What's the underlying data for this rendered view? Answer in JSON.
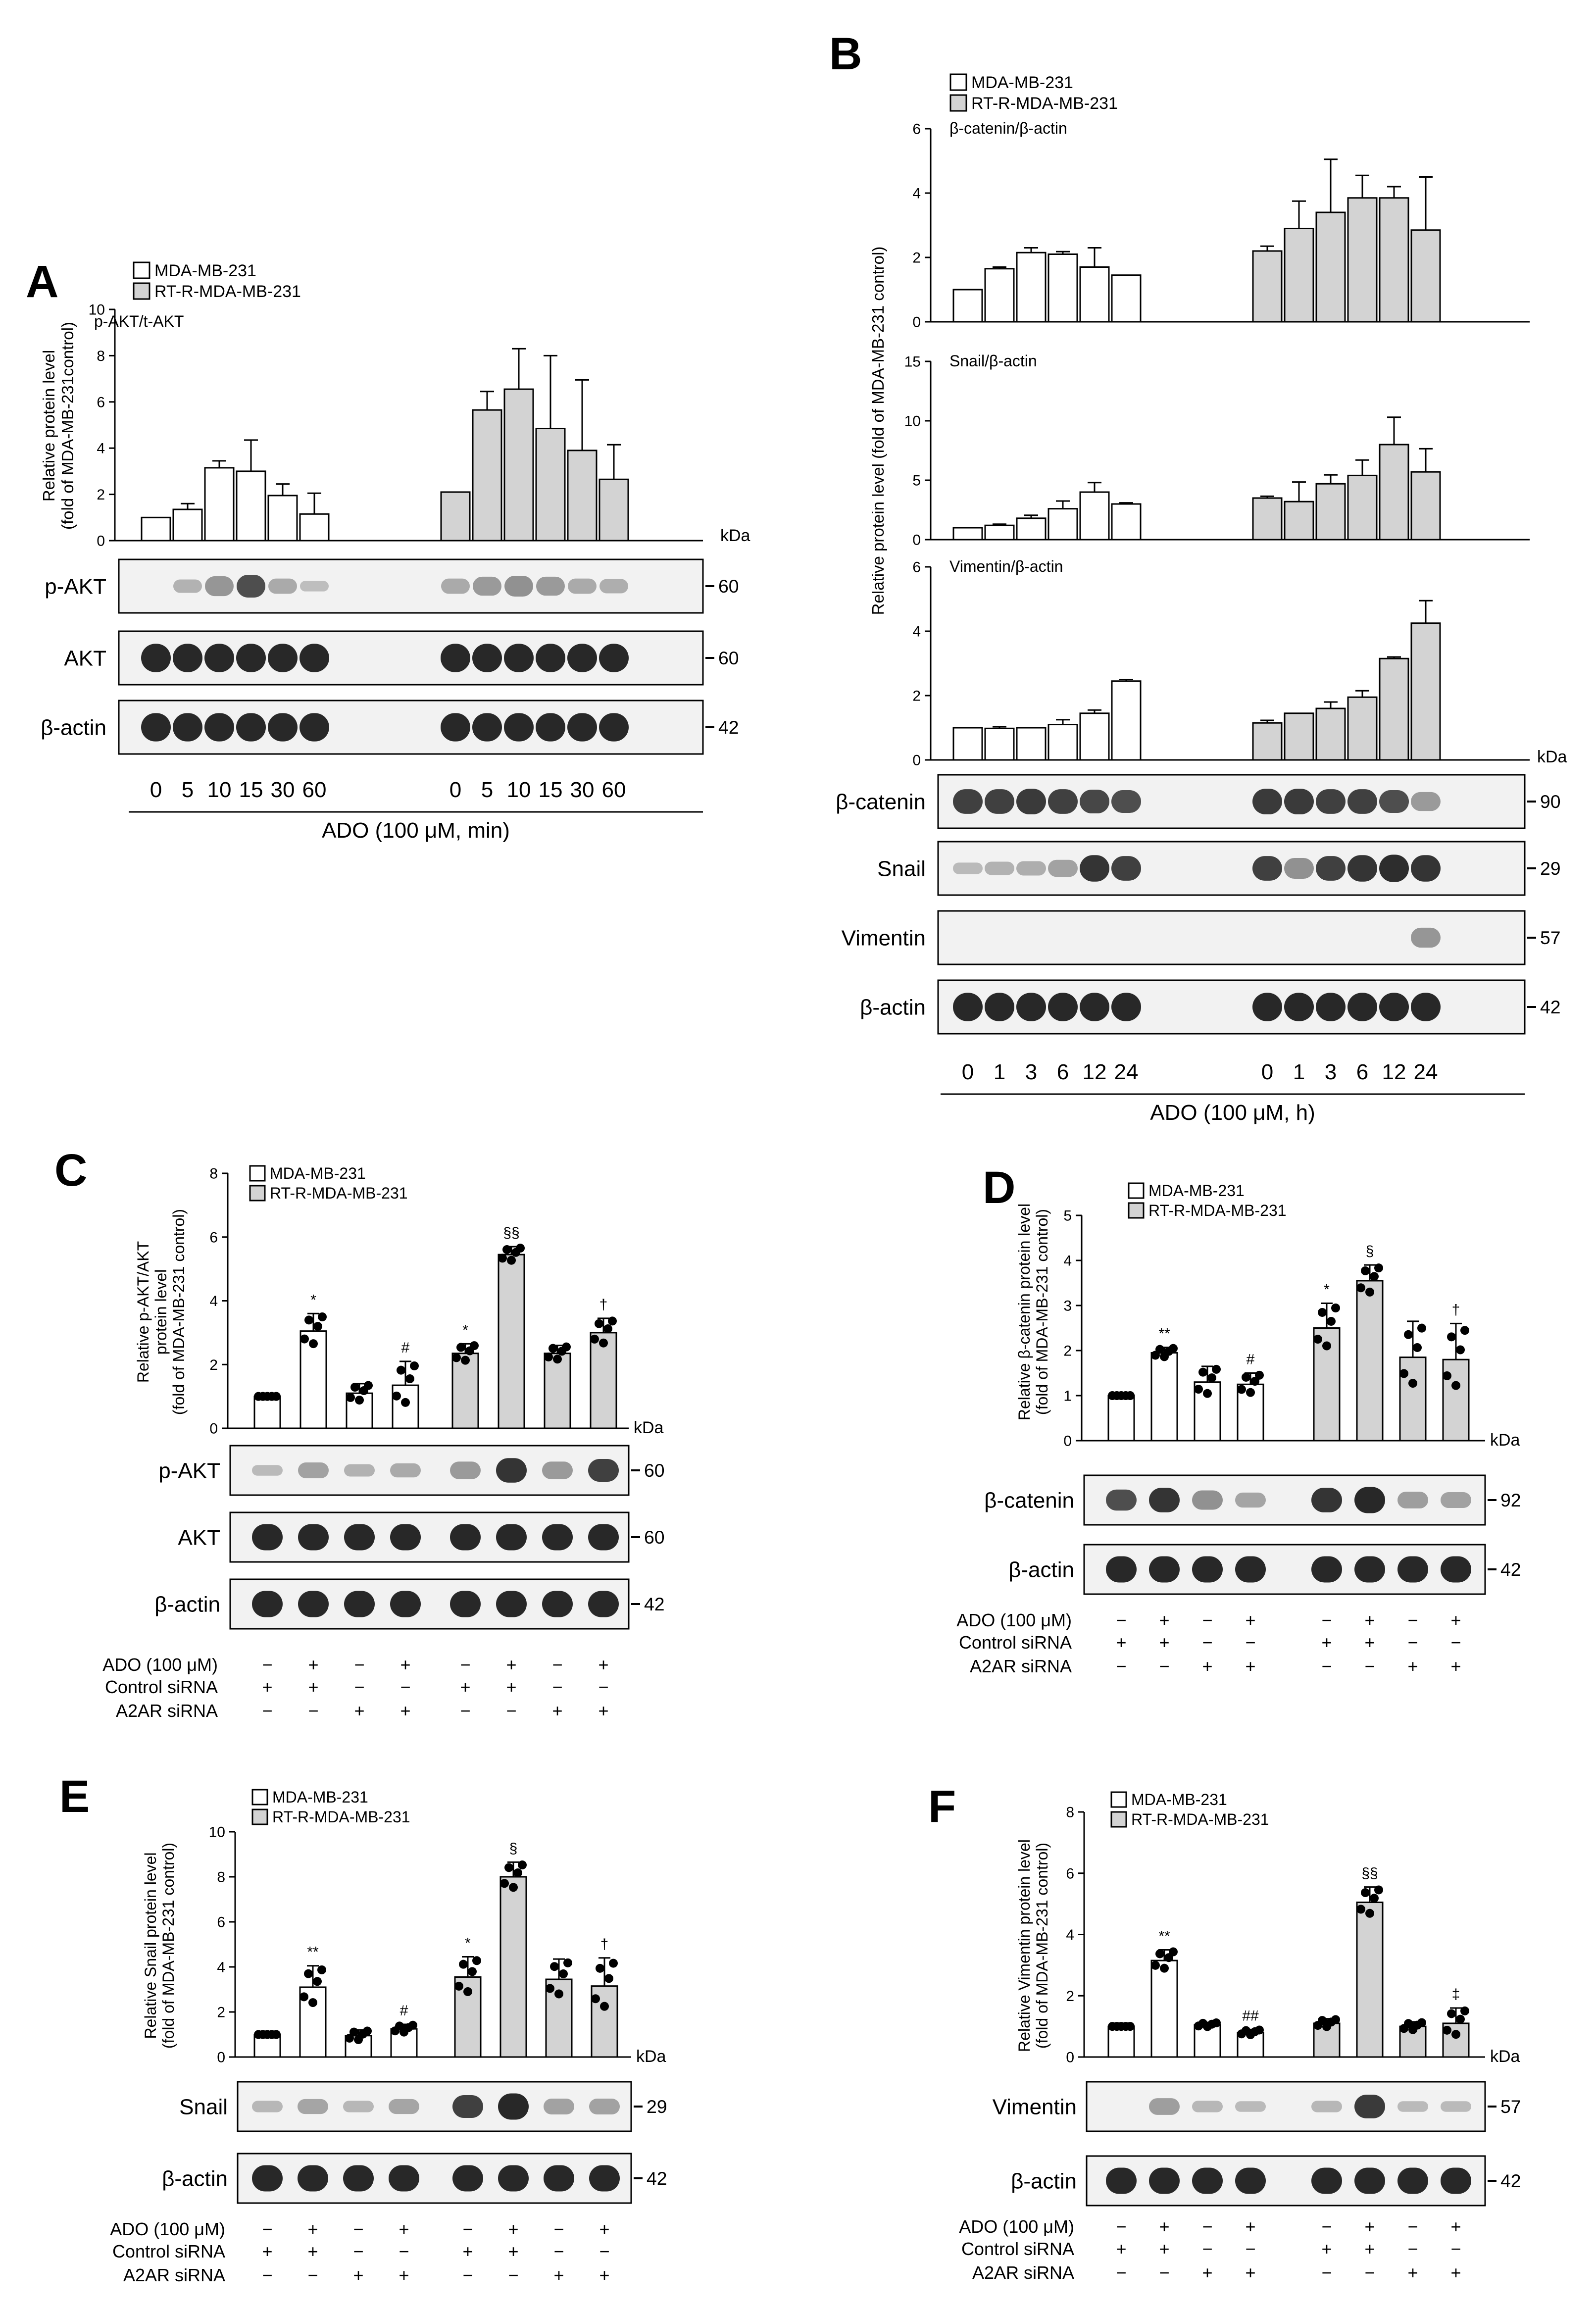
{
  "colors": {
    "ink": "#000000",
    "white_bar": "#ffffff",
    "grey_bar": "#d3d3d3",
    "blot_bg": "#f2f2f2",
    "band": "#1c1c1c",
    "band_light": "#6a6a6a"
  },
  "legend": {
    "white": "MDA-MB-231",
    "grey": "RT-R-MDA-MB-231"
  },
  "kda": "kDa",
  "treatments": {
    "ado": "ADO (100 μM)",
    "control": "Control siRNA",
    "a2ar": "A2AR siRNA",
    "ado_signs": [
      "−",
      "+",
      "−",
      "+",
      "−",
      "+",
      "−",
      "+"
    ],
    "control_signs": [
      "+",
      "+",
      "−",
      "−",
      "+",
      "+",
      "−",
      "−"
    ],
    "a2ar_signs": [
      "−",
      "−",
      "+",
      "+",
      "−",
      "−",
      "+",
      "+"
    ]
  },
  "panelA": {
    "letter": "A",
    "ylabel_1": "Relative protein level",
    "ylabel_2": "(fold of MDA-MB-231control)",
    "subtitle": "p-AKT/t-AKT",
    "time_labels": [
      "0",
      "5",
      "10",
      "15",
      "30",
      "60",
      "0",
      "5",
      "10",
      "15",
      "30",
      "60"
    ],
    "xlabel": "ADO (100 μM, min)",
    "blots": [
      {
        "label": "p-AKT",
        "kda": "60"
      },
      {
        "label": "AKT",
        "kda": "60"
      },
      {
        "label": "β-actin",
        "kda": "42"
      }
    ]
  },
  "panelB": {
    "letter": "B",
    "ylabel": "Relative protein level (fold of MDA-MB-231 control)",
    "subtitles": [
      "β-catenin/β-actin",
      "Snail/β-actin",
      "Vimentin/β-actin"
    ],
    "time_labels": [
      "0",
      "1",
      "3",
      "6",
      "12",
      "24",
      "0",
      "1",
      "3",
      "6",
      "12",
      "24"
    ],
    "xlabel": "ADO (100 μM, h)",
    "blots": [
      {
        "label": "β-catenin",
        "kda": "90"
      },
      {
        "label": "Snail",
        "kda": "29"
      },
      {
        "label": "Vimentin",
        "kda": "57"
      },
      {
        "label": "β-actin",
        "kda": "42"
      }
    ]
  },
  "panelC": {
    "letter": "C",
    "ylabel_1": "Relative p-AKT/AKT",
    "ylabel_2": "protein level",
    "ylabel_3": "(fold of MDA-MB-231 control)",
    "blots": [
      {
        "label": "p-AKT",
        "kda": "60"
      },
      {
        "label": "AKT",
        "kda": "60"
      },
      {
        "label": "β-actin",
        "kda": "42"
      }
    ]
  },
  "panelD": {
    "letter": "D",
    "ylabel_1": "Relative β-catenin protein level",
    "ylabel_2": "(fold of MDA-MB-231 control)",
    "blots": [
      {
        "label": "β-catenin",
        "kda": "92"
      },
      {
        "label": "β-actin",
        "kda": "42"
      }
    ]
  },
  "panelE": {
    "letter": "E",
    "ylabel_1": "Relative Snail protein level",
    "ylabel_2": "(fold of MDA-MB-231 control)",
    "blots": [
      {
        "label": "Snail",
        "kda": "29"
      },
      {
        "label": "β-actin",
        "kda": "42"
      }
    ]
  },
  "panelF": {
    "letter": "F",
    "ylabel_1": "Relative Vimentin protein level",
    "ylabel_2": "(fold of MDA-MB-231 control)",
    "blots": [
      {
        "label": "Vimentin",
        "kda": "57"
      },
      {
        "label": "β-actin",
        "kda": "42"
      }
    ]
  },
  "chart_data": [
    {
      "id": "A",
      "type": "bar",
      "title": "p-AKT/t-AKT",
      "ylabel": "Relative protein level (fold of MDA-MB-231control)",
      "xlabel": "ADO (100 μM, min)",
      "ylim": [
        0,
        10
      ],
      "yticks": [
        0,
        2,
        4,
        6,
        8,
        10
      ],
      "series": [
        {
          "name": "MDA-MB-231",
          "categories": [
            "0",
            "5",
            "10",
            "15",
            "30",
            "60"
          ],
          "values": [
            1.0,
            1.35,
            3.15,
            3.0,
            1.95,
            1.15
          ],
          "errors": [
            0,
            0.25,
            0.3,
            1.35,
            0.5,
            0.9
          ]
        },
        {
          "name": "RT-R-MDA-MB-231",
          "categories": [
            "0",
            "5",
            "10",
            "15",
            "30",
            "60"
          ],
          "values": [
            2.1,
            5.65,
            6.55,
            4.85,
            3.9,
            2.65
          ],
          "errors": [
            0,
            0.8,
            1.75,
            3.15,
            3.05,
            1.5
          ]
        }
      ]
    },
    {
      "id": "B1",
      "type": "bar",
      "title": "β-catenin/β-actin",
      "ylim": [
        0,
        6
      ],
      "yticks": [
        0,
        2,
        4,
        6
      ],
      "series": [
        {
          "name": "MDA-MB-231",
          "categories": [
            "0",
            "1",
            "3",
            "6",
            "12",
            "24"
          ],
          "values": [
            1.0,
            1.65,
            2.15,
            2.1,
            1.7,
            1.45
          ],
          "errors": [
            0,
            0.05,
            0.15,
            0.08,
            0.6,
            0
          ]
        },
        {
          "name": "RT-R-MDA-MB-231",
          "categories": [
            "0",
            "1",
            "3",
            "6",
            "12",
            "24"
          ],
          "values": [
            2.2,
            2.9,
            3.4,
            3.85,
            3.85,
            2.85
          ],
          "errors": [
            0.15,
            0.85,
            1.65,
            0.7,
            0.35,
            1.65
          ]
        }
      ]
    },
    {
      "id": "B2",
      "type": "bar",
      "title": "Snail/β-actin",
      "ylim": [
        0,
        15
      ],
      "yticks": [
        0,
        5,
        10,
        15
      ],
      "series": [
        {
          "name": "MDA-MB-231",
          "categories": [
            "0",
            "1",
            "3",
            "6",
            "12",
            "24"
          ],
          "values": [
            1.0,
            1.2,
            1.8,
            2.6,
            4.0,
            3.0
          ],
          "errors": [
            0,
            0.1,
            0.25,
            0.65,
            0.8,
            0.1
          ]
        },
        {
          "name": "RT-R-MDA-MB-231",
          "categories": [
            "0",
            "1",
            "3",
            "6",
            "12",
            "24"
          ],
          "values": [
            3.5,
            3.2,
            4.7,
            5.4,
            8.0,
            5.7
          ],
          "errors": [
            0.15,
            1.65,
            0.75,
            1.3,
            2.3,
            1.95
          ]
        }
      ]
    },
    {
      "id": "B3",
      "type": "bar",
      "title": "Vimentin/β-actin",
      "ylim": [
        0,
        6
      ],
      "yticks": [
        0,
        2,
        4,
        6
      ],
      "series": [
        {
          "name": "MDA-MB-231",
          "categories": [
            "0",
            "1",
            "3",
            "6",
            "12",
            "24"
          ],
          "values": [
            1.0,
            0.98,
            1.0,
            1.1,
            1.45,
            2.45
          ],
          "errors": [
            0,
            0.05,
            0,
            0.15,
            0.1,
            0.05
          ]
        },
        {
          "name": "RT-R-MDA-MB-231",
          "categories": [
            "0",
            "1",
            "3",
            "6",
            "12",
            "24"
          ],
          "values": [
            1.15,
            1.45,
            1.6,
            1.95,
            3.15,
            4.25
          ],
          "errors": [
            0.08,
            0,
            0.2,
            0.2,
            0.05,
            0.7
          ]
        }
      ]
    },
    {
      "id": "C",
      "type": "bar",
      "ylim": [
        0,
        8
      ],
      "yticks": [
        0,
        2,
        4,
        6,
        8
      ],
      "series": [
        {
          "name": "MDA-MB-231",
          "values": [
            1.0,
            3.05,
            1.1,
            1.35
          ],
          "errors": [
            0,
            0.55,
            0.3,
            0.75
          ],
          "annotations": [
            "",
            "*",
            "",
            "#"
          ]
        },
        {
          "name": "RT-R-MDA-MB-231",
          "values": [
            2.35,
            5.45,
            2.35,
            3.0
          ],
          "errors": [
            0.3,
            0.25,
            0.25,
            0.45
          ],
          "annotations": [
            "*",
            "§§",
            "",
            "†"
          ]
        }
      ]
    },
    {
      "id": "D",
      "type": "bar",
      "ylim": [
        0,
        5
      ],
      "yticks": [
        0,
        1,
        2,
        3,
        4,
        5
      ],
      "series": [
        {
          "name": "MDA-MB-231",
          "values": [
            1.0,
            1.95,
            1.3,
            1.25
          ],
          "errors": [
            0,
            0.12,
            0.35,
            0.25
          ],
          "annotations": [
            "",
            "**",
            "",
            "#"
          ]
        },
        {
          "name": "RT-R-MDA-MB-231",
          "values": [
            2.5,
            3.55,
            1.85,
            1.8
          ],
          "errors": [
            0.55,
            0.35,
            0.8,
            0.8
          ],
          "annotations": [
            "*",
            "§",
            "",
            "†"
          ]
        }
      ]
    },
    {
      "id": "E",
      "type": "bar",
      "ylim": [
        0,
        10
      ],
      "yticks": [
        0,
        2,
        4,
        6,
        8,
        10
      ],
      "series": [
        {
          "name": "MDA-MB-231",
          "values": [
            1.0,
            3.1,
            0.95,
            1.25
          ],
          "errors": [
            0,
            0.95,
            0.25,
            0.2
          ],
          "annotations": [
            "",
            "**",
            "",
            "#"
          ]
        },
        {
          "name": "RT-R-MDA-MB-231",
          "values": [
            3.55,
            8.0,
            3.45,
            3.15
          ],
          "errors": [
            0.9,
            0.65,
            0.9,
            1.25
          ],
          "annotations": [
            "*",
            "§",
            "",
            "†"
          ]
        }
      ]
    },
    {
      "id": "F",
      "type": "bar",
      "ylim": [
        0,
        8
      ],
      "yticks": [
        0,
        2,
        4,
        6,
        8
      ],
      "series": [
        {
          "name": "MDA-MB-231",
          "values": [
            1.0,
            3.15,
            1.05,
            0.8
          ],
          "errors": [
            0,
            0.35,
            0.08,
            0.1
          ],
          "annotations": [
            "",
            "**",
            "",
            "##"
          ]
        },
        {
          "name": "RT-R-MDA-MB-231",
          "values": [
            1.1,
            5.05,
            1.0,
            1.1
          ],
          "errors": [
            0.15,
            0.5,
            0.15,
            0.5
          ],
          "annotations": [
            "",
            "§§",
            "",
            "‡"
          ]
        }
      ]
    }
  ]
}
